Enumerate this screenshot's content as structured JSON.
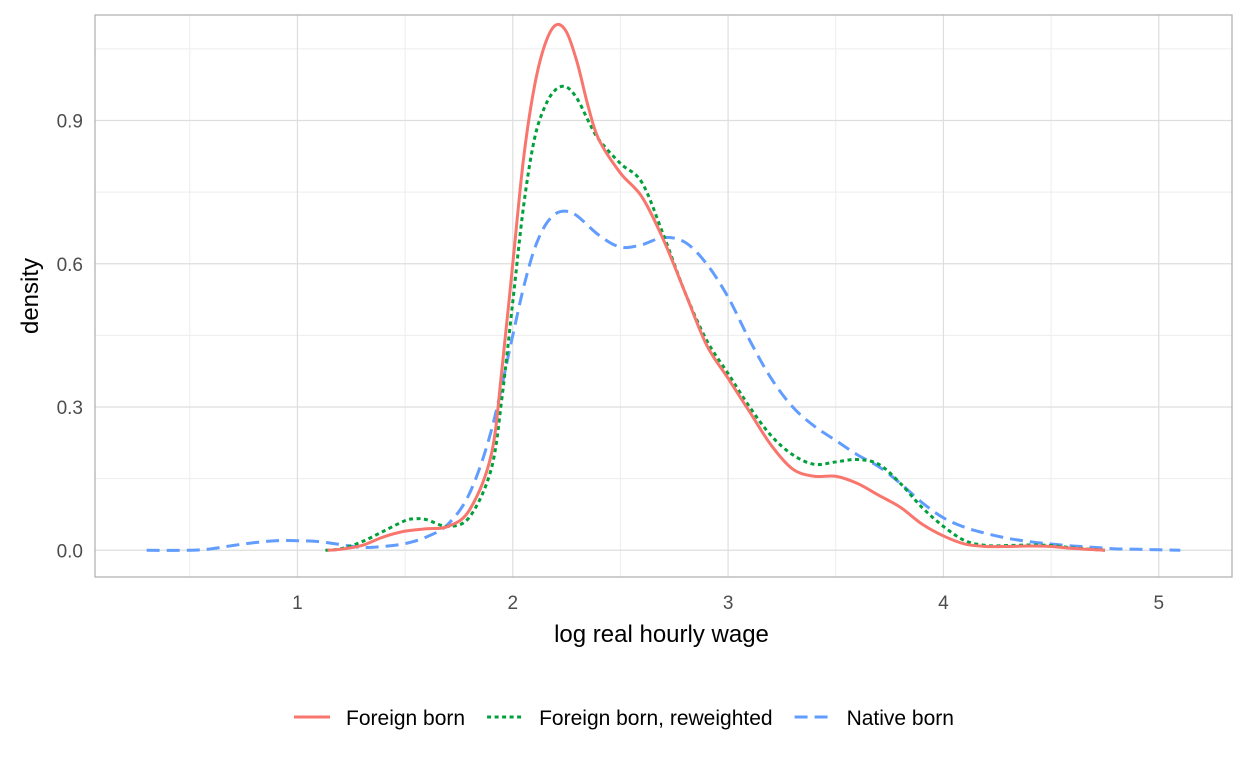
{
  "chart_data": {
    "type": "line",
    "title": "",
    "xlabel": "log real hourly wage",
    "ylabel": "density",
    "xlim": [
      0.3,
      5.1
    ],
    "ylim": [
      0,
      1.1
    ],
    "x_ticks": [
      1,
      2,
      3,
      4,
      5
    ],
    "x_tick_labels": [
      "1",
      "2",
      "3",
      "4",
      "5"
    ],
    "y_ticks": [
      0,
      0.3,
      0.6,
      0.9
    ],
    "y_tick_labels": [
      "0.0",
      "0.3",
      "0.6",
      "0.9"
    ],
    "grid": true,
    "legend_position": "bottom",
    "series": [
      {
        "name": "Foreign born",
        "color": "#F8766D",
        "dash": "solid",
        "points": [
          [
            1.14,
            0.0
          ],
          [
            1.2,
            0.002
          ],
          [
            1.3,
            0.01
          ],
          [
            1.4,
            0.028
          ],
          [
            1.5,
            0.04
          ],
          [
            1.6,
            0.045
          ],
          [
            1.7,
            0.05
          ],
          [
            1.8,
            0.085
          ],
          [
            1.9,
            0.2
          ],
          [
            1.95,
            0.38
          ],
          [
            2.0,
            0.6
          ],
          [
            2.05,
            0.82
          ],
          [
            2.1,
            0.97
          ],
          [
            2.15,
            1.06
          ],
          [
            2.2,
            1.1
          ],
          [
            2.25,
            1.085
          ],
          [
            2.3,
            1.02
          ],
          [
            2.35,
            0.93
          ],
          [
            2.4,
            0.86
          ],
          [
            2.5,
            0.79
          ],
          [
            2.6,
            0.74
          ],
          [
            2.7,
            0.65
          ],
          [
            2.8,
            0.54
          ],
          [
            2.9,
            0.43
          ],
          [
            3.0,
            0.36
          ],
          [
            3.1,
            0.29
          ],
          [
            3.2,
            0.22
          ],
          [
            3.3,
            0.17
          ],
          [
            3.4,
            0.155
          ],
          [
            3.5,
            0.155
          ],
          [
            3.6,
            0.14
          ],
          [
            3.7,
            0.115
          ],
          [
            3.8,
            0.09
          ],
          [
            3.9,
            0.055
          ],
          [
            4.0,
            0.03
          ],
          [
            4.1,
            0.013
          ],
          [
            4.2,
            0.008
          ],
          [
            4.3,
            0.008
          ],
          [
            4.4,
            0.009
          ],
          [
            4.5,
            0.008
          ],
          [
            4.6,
            0.004
          ],
          [
            4.75,
            0.0
          ]
        ]
      },
      {
        "name": "Foreign born, reweighted",
        "color": "#00A03A",
        "dash": "dotted",
        "points": [
          [
            1.13,
            0.0
          ],
          [
            1.2,
            0.003
          ],
          [
            1.3,
            0.018
          ],
          [
            1.4,
            0.04
          ],
          [
            1.5,
            0.062
          ],
          [
            1.55,
            0.066
          ],
          [
            1.6,
            0.064
          ],
          [
            1.7,
            0.05
          ],
          [
            1.8,
            0.07
          ],
          [
            1.9,
            0.17
          ],
          [
            1.95,
            0.32
          ],
          [
            2.0,
            0.52
          ],
          [
            2.05,
            0.72
          ],
          [
            2.1,
            0.86
          ],
          [
            2.15,
            0.93
          ],
          [
            2.2,
            0.965
          ],
          [
            2.25,
            0.97
          ],
          [
            2.3,
            0.945
          ],
          [
            2.35,
            0.9
          ],
          [
            2.4,
            0.86
          ],
          [
            2.5,
            0.81
          ],
          [
            2.6,
            0.77
          ],
          [
            2.7,
            0.66
          ],
          [
            2.8,
            0.54
          ],
          [
            2.9,
            0.44
          ],
          [
            3.0,
            0.37
          ],
          [
            3.1,
            0.3
          ],
          [
            3.2,
            0.24
          ],
          [
            3.3,
            0.2
          ],
          [
            3.4,
            0.18
          ],
          [
            3.5,
            0.185
          ],
          [
            3.6,
            0.19
          ],
          [
            3.7,
            0.18
          ],
          [
            3.8,
            0.14
          ],
          [
            3.9,
            0.09
          ],
          [
            4.0,
            0.05
          ],
          [
            4.1,
            0.02
          ],
          [
            4.2,
            0.01
          ],
          [
            4.3,
            0.01
          ],
          [
            4.4,
            0.011
          ],
          [
            4.5,
            0.01
          ],
          [
            4.6,
            0.005
          ],
          [
            4.75,
            0.0
          ]
        ]
      },
      {
        "name": "Native born",
        "color": "#619CFF",
        "dash": "dashed",
        "points": [
          [
            0.3,
            0.0
          ],
          [
            0.5,
            0.0
          ],
          [
            0.6,
            0.003
          ],
          [
            0.7,
            0.01
          ],
          [
            0.8,
            0.016
          ],
          [
            0.9,
            0.02
          ],
          [
            1.0,
            0.02
          ],
          [
            1.1,
            0.018
          ],
          [
            1.2,
            0.012
          ],
          [
            1.3,
            0.006
          ],
          [
            1.4,
            0.008
          ],
          [
            1.5,
            0.014
          ],
          [
            1.6,
            0.028
          ],
          [
            1.7,
            0.055
          ],
          [
            1.8,
            0.12
          ],
          [
            1.9,
            0.25
          ],
          [
            2.0,
            0.45
          ],
          [
            2.05,
            0.55
          ],
          [
            2.1,
            0.63
          ],
          [
            2.15,
            0.68
          ],
          [
            2.2,
            0.705
          ],
          [
            2.25,
            0.71
          ],
          [
            2.3,
            0.7
          ],
          [
            2.4,
            0.66
          ],
          [
            2.5,
            0.635
          ],
          [
            2.6,
            0.64
          ],
          [
            2.7,
            0.655
          ],
          [
            2.8,
            0.645
          ],
          [
            2.9,
            0.6
          ],
          [
            3.0,
            0.53
          ],
          [
            3.1,
            0.44
          ],
          [
            3.2,
            0.36
          ],
          [
            3.3,
            0.3
          ],
          [
            3.4,
            0.26
          ],
          [
            3.5,
            0.23
          ],
          [
            3.6,
            0.2
          ],
          [
            3.7,
            0.175
          ],
          [
            3.8,
            0.14
          ],
          [
            3.9,
            0.1
          ],
          [
            4.0,
            0.068
          ],
          [
            4.1,
            0.048
          ],
          [
            4.2,
            0.035
          ],
          [
            4.3,
            0.025
          ],
          [
            4.4,
            0.018
          ],
          [
            4.5,
            0.013
          ],
          [
            4.6,
            0.009
          ],
          [
            4.7,
            0.006
          ],
          [
            4.8,
            0.003
          ],
          [
            4.9,
            0.002
          ],
          [
            5.0,
            0.001
          ],
          [
            5.1,
            0.0
          ]
        ]
      }
    ]
  }
}
